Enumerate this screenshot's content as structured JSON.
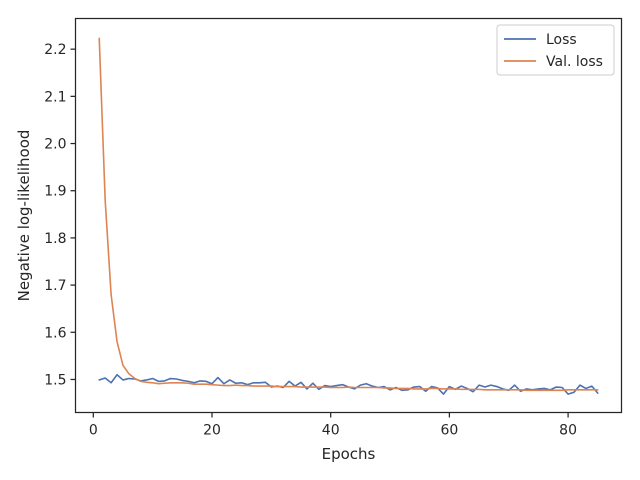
{
  "chart_data": {
    "type": "line",
    "xlabel": "Epochs",
    "ylabel": "Negative log-likelihood",
    "xlim": [
      -3,
      89
    ],
    "ylim": [
      1.43,
      2.265
    ],
    "xticks": [
      0,
      20,
      40,
      60,
      80
    ],
    "yticks": [
      1.5,
      1.6,
      1.7,
      1.8,
      1.9,
      2.0,
      2.1,
      2.2
    ],
    "xtick_labels": [
      "0",
      "20",
      "40",
      "60",
      "80"
    ],
    "ytick_labels": [
      "1.5",
      "1.6",
      "1.7",
      "1.8",
      "1.9",
      "2.0",
      "2.1",
      "2.2"
    ],
    "grid": false,
    "legend_position": "top-right",
    "series": [
      {
        "name": "Loss",
        "color": "#4c72b0",
        "x": [
          1,
          2,
          3,
          4,
          5,
          6,
          7,
          8,
          9,
          10,
          11,
          12,
          13,
          14,
          15,
          16,
          17,
          18,
          19,
          20,
          21,
          22,
          23,
          24,
          25,
          26,
          27,
          28,
          29,
          30,
          31,
          32,
          33,
          34,
          35,
          36,
          37,
          38,
          39,
          40,
          41,
          42,
          43,
          44,
          45,
          46,
          47,
          48,
          49,
          50,
          51,
          52,
          53,
          54,
          55,
          56,
          57,
          58,
          59,
          60,
          61,
          62,
          63,
          64,
          65,
          66,
          67,
          68,
          69,
          70,
          71,
          72,
          73,
          74,
          75,
          76,
          77,
          78,
          79,
          80,
          81,
          82,
          83,
          84,
          85
        ],
        "values": [
          1.499,
          1.503,
          1.493,
          1.51,
          1.499,
          1.502,
          1.501,
          1.497,
          1.499,
          1.502,
          1.496,
          1.497,
          1.502,
          1.501,
          1.498,
          1.496,
          1.493,
          1.497,
          1.496,
          1.491,
          1.504,
          1.491,
          1.499,
          1.492,
          1.493,
          1.489,
          1.493,
          1.493,
          1.494,
          1.484,
          1.486,
          1.483,
          1.496,
          1.486,
          1.494,
          1.48,
          1.492,
          1.479,
          1.487,
          1.485,
          1.487,
          1.489,
          1.484,
          1.48,
          1.488,
          1.491,
          1.486,
          1.483,
          1.485,
          1.478,
          1.483,
          1.477,
          1.478,
          1.484,
          1.485,
          1.475,
          1.485,
          1.482,
          1.469,
          1.485,
          1.479,
          1.486,
          1.481,
          1.474,
          1.488,
          1.484,
          1.488,
          1.485,
          1.48,
          1.477,
          1.488,
          1.475,
          1.48,
          1.478,
          1.48,
          1.481,
          1.478,
          1.484,
          1.483,
          1.469,
          1.473,
          1.488,
          1.481,
          1.486,
          1.471
        ]
      },
      {
        "name": "Val. loss",
        "color": "#dd8452",
        "x": [
          1,
          2,
          3,
          4,
          5,
          6,
          7,
          8,
          9,
          10,
          11,
          12,
          13,
          14,
          15,
          16,
          17,
          18,
          19,
          20,
          21,
          22,
          23,
          24,
          25,
          26,
          27,
          28,
          29,
          30,
          31,
          32,
          33,
          34,
          35,
          36,
          37,
          38,
          39,
          40,
          41,
          42,
          43,
          44,
          45,
          46,
          47,
          48,
          49,
          50,
          51,
          52,
          53,
          54,
          55,
          56,
          57,
          58,
          59,
          60,
          61,
          62,
          63,
          64,
          65,
          66,
          67,
          68,
          69,
          70,
          71,
          72,
          73,
          74,
          75,
          76,
          77,
          78,
          79,
          80,
          81,
          82,
          83,
          84,
          85
        ],
        "values": [
          2.223,
          1.88,
          1.68,
          1.58,
          1.53,
          1.512,
          1.502,
          1.496,
          1.494,
          1.493,
          1.491,
          1.492,
          1.493,
          1.493,
          1.493,
          1.492,
          1.49,
          1.49,
          1.49,
          1.489,
          1.488,
          1.487,
          1.487,
          1.488,
          1.487,
          1.487,
          1.486,
          1.486,
          1.486,
          1.486,
          1.485,
          1.485,
          1.485,
          1.485,
          1.484,
          1.484,
          1.484,
          1.484,
          1.484,
          1.483,
          1.483,
          1.483,
          1.484,
          1.483,
          1.483,
          1.483,
          1.483,
          1.483,
          1.482,
          1.482,
          1.481,
          1.481,
          1.481,
          1.48,
          1.48,
          1.48,
          1.481,
          1.481,
          1.48,
          1.48,
          1.48,
          1.479,
          1.479,
          1.479,
          1.479,
          1.478,
          1.478,
          1.478,
          1.478,
          1.478,
          1.478,
          1.478,
          1.477,
          1.477,
          1.477,
          1.477,
          1.477,
          1.477,
          1.477,
          1.478,
          1.478,
          1.478,
          1.478,
          1.478,
          1.478
        ]
      }
    ]
  }
}
